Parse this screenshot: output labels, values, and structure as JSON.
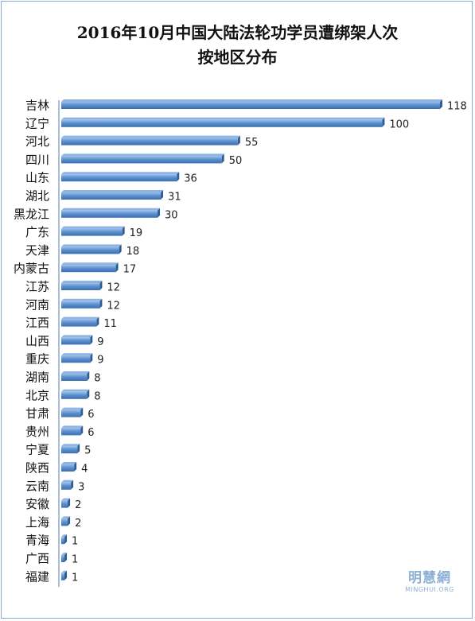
{
  "chart_data": {
    "type": "bar",
    "orientation": "horizontal",
    "title_line1": "2016年10月中国大陆法轮功学员遭绑架人次",
    "title_line2": "按地区分布",
    "categories": [
      "吉林",
      "辽宁",
      "河北",
      "四川",
      "山东",
      "湖北",
      "黑龙江",
      "广东",
      "天津",
      "内蒙古",
      "江苏",
      "河南",
      "江西",
      "山西",
      "重庆",
      "湖南",
      "北京",
      "甘肃",
      "贵州",
      "宁夏",
      "陕西",
      "云南",
      "安徽",
      "上海",
      "青海",
      "广西",
      "福建"
    ],
    "values": [
      118,
      100,
      55,
      50,
      36,
      31,
      30,
      19,
      18,
      17,
      12,
      12,
      11,
      9,
      9,
      8,
      8,
      6,
      6,
      5,
      4,
      3,
      2,
      2,
      1,
      1,
      1
    ],
    "xlim": [
      0,
      118
    ],
    "grid": false,
    "legend": "none",
    "bar_color": "#4f81bd",
    "bar_side_color": "#2f5d93",
    "bar_top_color": "#8eb4e3"
  },
  "watermark": {
    "text": "明慧網",
    "sub": "MINGHUI.ORG",
    "color": "#8fb0d6"
  }
}
